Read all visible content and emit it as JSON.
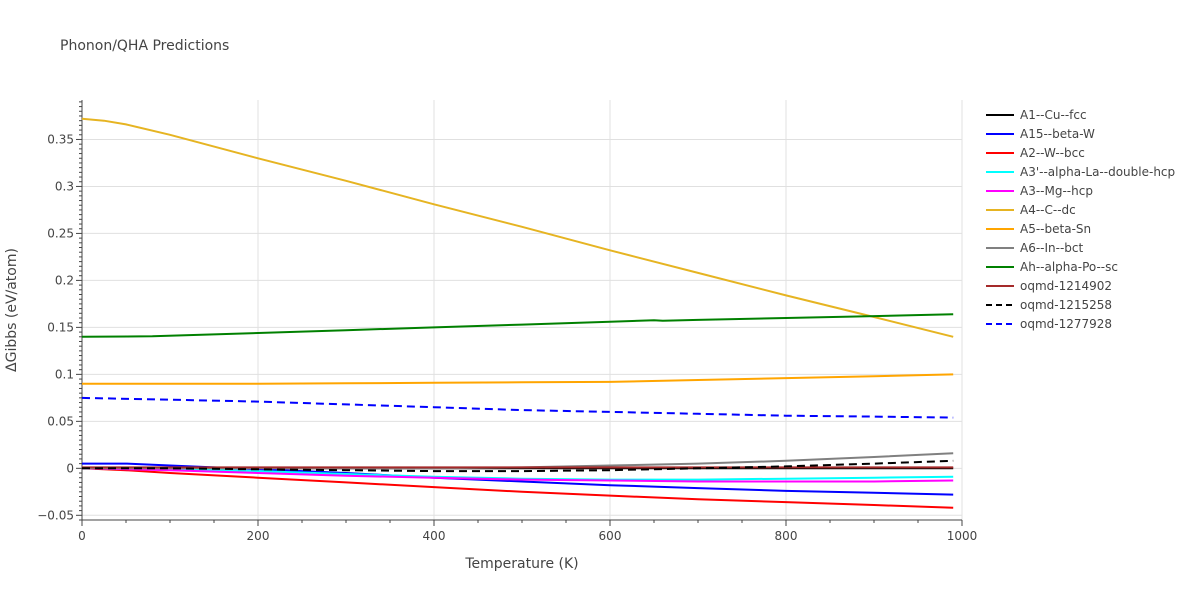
{
  "chart_data": {
    "type": "line",
    "title": "Phonon/QHA Predictions",
    "xlabel": "Temperature (K)",
    "ylabel": "ΔGibbs (eV/atom)",
    "xlim": [
      0,
      1000
    ],
    "ylim": [
      -0.055,
      0.392
    ],
    "xticks": [
      0,
      200,
      400,
      600,
      800,
      1000
    ],
    "yticks": [
      -0.05,
      0,
      0.05,
      0.1,
      0.15,
      0.2,
      0.25,
      0.3,
      0.35
    ],
    "ytick_labels": [
      "−0.05",
      "0",
      "0.05",
      "0.1",
      "0.15",
      "0.2",
      "0.25",
      "0.3",
      "0.35"
    ],
    "grid": true,
    "legend_position": "right",
    "series": [
      {
        "name": "A1--Cu--fcc",
        "color": "#000000",
        "dash": "solid",
        "x": [
          0,
          990
        ],
        "y": [
          0,
          0
        ]
      },
      {
        "name": "A15--beta-W",
        "color": "#0000ff",
        "dash": "solid",
        "x": [
          0,
          50,
          100,
          200,
          300,
          400,
          500,
          600,
          700,
          800,
          900,
          990
        ],
        "y": [
          0.005,
          0.005,
          0.003,
          -0.001,
          -0.005,
          -0.01,
          -0.014,
          -0.018,
          -0.021,
          -0.024,
          -0.026,
          -0.028
        ]
      },
      {
        "name": "A2--W--bcc",
        "color": "#ff0000",
        "dash": "solid",
        "x": [
          0,
          50,
          100,
          200,
          300,
          400,
          500,
          600,
          700,
          800,
          900,
          990
        ],
        "y": [
          0,
          -0.002,
          -0.005,
          -0.01,
          -0.015,
          -0.02,
          -0.025,
          -0.029,
          -0.033,
          -0.036,
          -0.039,
          -0.042
        ]
      },
      {
        "name": "A3'--alpha-La--double-hcp",
        "color": "#00ffff",
        "dash": "solid",
        "x": [
          0,
          100,
          200,
          300,
          400,
          500,
          600,
          700,
          800,
          900,
          990
        ],
        "y": [
          0,
          -0.001,
          -0.003,
          -0.006,
          -0.009,
          -0.011,
          -0.012,
          -0.012,
          -0.011,
          -0.01,
          -0.009
        ]
      },
      {
        "name": "A3--Mg--hcp",
        "color": "#ff00ff",
        "dash": "solid",
        "x": [
          0,
          100,
          200,
          300,
          400,
          500,
          600,
          700,
          800,
          900,
          990
        ],
        "y": [
          0,
          -0.002,
          -0.005,
          -0.008,
          -0.01,
          -0.012,
          -0.013,
          -0.014,
          -0.014,
          -0.014,
          -0.013
        ]
      },
      {
        "name": "A4--C--dc",
        "color": "#e6b422",
        "dash": "solid",
        "x": [
          0,
          25,
          50,
          100,
          200,
          300,
          400,
          500,
          600,
          700,
          800,
          900,
          990
        ],
        "y": [
          0.372,
          0.37,
          0.366,
          0.355,
          0.33,
          0.306,
          0.281,
          0.257,
          0.232,
          0.208,
          0.184,
          0.161,
          0.14
        ]
      },
      {
        "name": "A5--beta-Sn",
        "color": "#ffa500",
        "dash": "solid",
        "x": [
          0,
          100,
          200,
          300,
          400,
          500,
          600,
          700,
          800,
          900,
          990
        ],
        "y": [
          0.09,
          0.09,
          0.09,
          0.0905,
          0.091,
          0.0915,
          0.092,
          0.094,
          0.096,
          0.098,
          0.1
        ]
      },
      {
        "name": "A6--In--bct",
        "color": "#808080",
        "dash": "solid",
        "x": [
          0,
          100,
          200,
          300,
          400,
          500,
          600,
          700,
          800,
          900,
          990
        ],
        "y": [
          0,
          0,
          0,
          0,
          0,
          0.001,
          0.003,
          0.005,
          0.008,
          0.012,
          0.016
        ]
      },
      {
        "name": "Ah--alpha-Po--sc",
        "color": "#008000",
        "dash": "solid",
        "x": [
          0,
          80,
          200,
          300,
          400,
          500,
          600,
          650,
          660,
          700,
          800,
          900,
          990
        ],
        "y": [
          0.14,
          0.1405,
          0.144,
          0.147,
          0.15,
          0.153,
          0.156,
          0.1575,
          0.157,
          0.158,
          0.16,
          0.162,
          0.164
        ]
      },
      {
        "name": "oqmd-1214902",
        "color": "#a52a2a",
        "dash": "solid",
        "x": [
          0,
          990
        ],
        "y": [
          0.001,
          0.001
        ]
      },
      {
        "name": "oqmd-1215258",
        "color": "#000000",
        "dash": "dash",
        "x": [
          0,
          100,
          200,
          300,
          400,
          500,
          600,
          700,
          800,
          900,
          990
        ],
        "y": [
          0,
          0,
          -0.001,
          -0.002,
          -0.003,
          -0.003,
          -0.002,
          0,
          0.002,
          0.005,
          0.008
        ]
      },
      {
        "name": "oqmd-1277928",
        "color": "#0000ff",
        "dash": "dash",
        "x": [
          0,
          100,
          200,
          300,
          400,
          500,
          600,
          700,
          800,
          900,
          990
        ],
        "y": [
          0.075,
          0.073,
          0.071,
          0.068,
          0.065,
          0.062,
          0.06,
          0.058,
          0.056,
          0.055,
          0.054
        ]
      }
    ]
  }
}
